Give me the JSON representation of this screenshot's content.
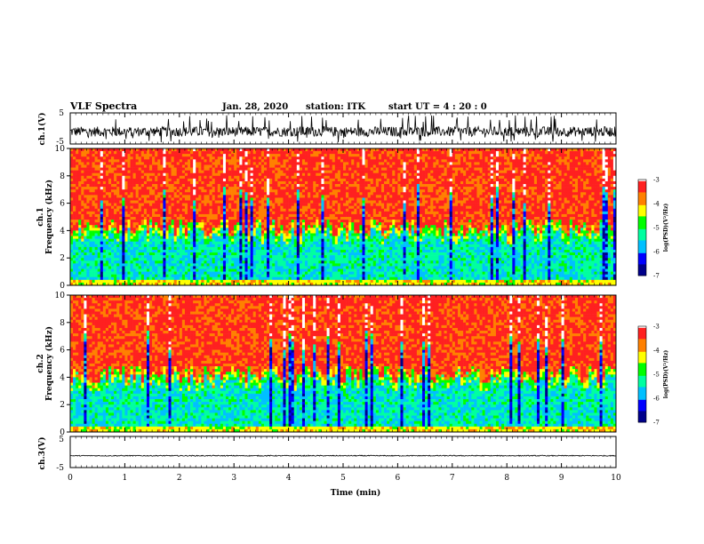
{
  "header": {
    "title": "VLF Spectra",
    "date": "Jan. 28, 2020",
    "station": "station: ITK",
    "start": "start UT = 4 : 20 : 0"
  },
  "chart_data": [
    {
      "type": "line",
      "panel": "ch1-waveform",
      "ylabel": "ch.1(V)",
      "yticks": [
        "5",
        "-5"
      ],
      "ylim": [
        -5,
        5
      ],
      "xlim": [
        0,
        10
      ],
      "series": [
        {
          "baseline": -1.0,
          "spread": 1.6,
          "spikes": true
        }
      ]
    },
    {
      "type": "heatmap",
      "panel": "ch1-spectrogram",
      "ylabel_top": "ch.1",
      "ylabel": "Frequency (kHz)",
      "yticks": [
        "0",
        "2",
        "4",
        "6",
        "8",
        "10"
      ],
      "ylim": [
        0,
        10
      ],
      "xlim": [
        0,
        10
      ],
      "background_level_log_psd": -3.4,
      "low_band_top_khz": 4.2,
      "colorbar": {
        "label": "log(PSD)(V²/Hz)",
        "range": [
          -7,
          -3
        ],
        "ticks": [
          "-3",
          "-4",
          "-5",
          "-6",
          "-7"
        ]
      }
    },
    {
      "type": "heatmap",
      "panel": "ch2-spectrogram",
      "ylabel_top": "ch.2",
      "ylabel": "Frequency (kHz)",
      "yticks": [
        "0",
        "2",
        "4",
        "6",
        "8",
        "10"
      ],
      "ylim": [
        0,
        10
      ],
      "xlim": [
        0,
        10
      ],
      "background_level_log_psd": -3.4,
      "low_band_top_khz": 4.2,
      "colorbar": {
        "label": "log(PSD)(V²/Hz)",
        "range": [
          -7,
          -3
        ],
        "ticks": [
          "-3",
          "-4",
          "-5",
          "-6",
          "-7"
        ]
      }
    },
    {
      "type": "line",
      "panel": "ch3-waveform",
      "ylabel": "ch.3(V)",
      "yticks": [
        "5",
        "-5"
      ],
      "ylim": [
        -5,
        5
      ],
      "xlim": [
        0,
        10
      ],
      "series": [
        {
          "baseline": -1.2,
          "spread": 0.15,
          "spikes": false
        }
      ]
    }
  ],
  "xaxis": {
    "label": "Time (min)",
    "ticks": [
      "0",
      "1",
      "2",
      "3",
      "4",
      "5",
      "6",
      "7",
      "8",
      "9",
      "10"
    ]
  },
  "colors": {
    "axis": "#000000",
    "trace": "#000000",
    "colormap": [
      "#00008b",
      "#0000ff",
      "#00c0ff",
      "#00ffa0",
      "#00ff00",
      "#ffff00",
      "#ff8000",
      "#ff2020",
      "#ffffff"
    ]
  }
}
